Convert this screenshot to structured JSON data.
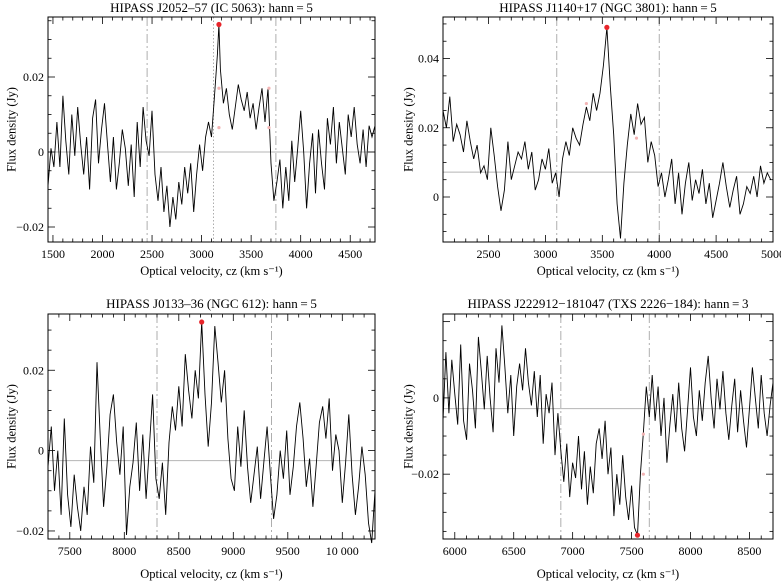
{
  "chart_data": [
    {
      "type": "line",
      "title": "HIPASS J2052–57 (IC 5063): hann = 5",
      "xlabel": "Optical velocity, cz (km s⁻¹)",
      "ylabel": "Flux density (Jy)",
      "xlim": [
        1450,
        4750
      ],
      "ylim": [
        -0.024,
        0.036
      ],
      "xticks": [
        "1500",
        "2000",
        "2500",
        "3000",
        "3500",
        "4000",
        "4500"
      ],
      "yticks": [
        "−0.02",
        "0",
        "0.02"
      ],
      "baseline": 0.0,
      "vlines_dashed": [
        2450,
        3750
      ],
      "vline_dotted": 3120,
      "peak": {
        "x": 3175,
        "y": 0.034
      },
      "markers": [
        {
          "x": 3175,
          "y": 0.017
        },
        {
          "x": 3175,
          "y": 0.0065
        },
        {
          "x": 3680,
          "y": 0.017
        },
        {
          "x": 3680,
          "y": 0.0065
        }
      ],
      "series": [
        {
          "x": [
            1450,
            1480,
            1510,
            1540,
            1570,
            1600,
            1630,
            1660,
            1690,
            1720,
            1750,
            1780,
            1810,
            1840,
            1870,
            1900,
            1930,
            1960,
            1990,
            2020,
            2050,
            2080,
            2110,
            2140,
            2170,
            2200,
            2230,
            2260,
            2290,
            2320,
            2350,
            2380,
            2410,
            2440,
            2470,
            2500,
            2530,
            2560,
            2590,
            2620,
            2650,
            2680,
            2710,
            2740,
            2770,
            2800,
            2830,
            2860,
            2890,
            2920,
            2950,
            2980,
            3010,
            3040,
            3070,
            3100,
            3130,
            3160,
            3175,
            3190,
            3220,
            3250,
            3280,
            3310,
            3340,
            3370,
            3400,
            3430,
            3460,
            3490,
            3520,
            3550,
            3580,
            3610,
            3640,
            3670,
            3700,
            3730,
            3760,
            3790,
            3820,
            3850,
            3880,
            3910,
            3940,
            3970,
            4000,
            4030,
            4060,
            4090,
            4120,
            4150,
            4180,
            4210,
            4240,
            4270,
            4300,
            4330,
            4360,
            4390,
            4420,
            4450,
            4480,
            4510,
            4540,
            4570,
            4600,
            4630,
            4660,
            4690,
            4720,
            4750
          ],
          "values": [
            -0.009,
            0.001,
            -0.004,
            0.008,
            -0.004,
            0.015,
            0.003,
            -0.006,
            0.01,
            -0.001,
            0.012,
            0.002,
            -0.006,
            0.004,
            -0.01,
            0.009,
            0.014,
            -0.003,
            0.006,
            0.013,
            0.002,
            -0.008,
            0.004,
            -0.01,
            -0.003,
            0.006,
            0.001,
            -0.009,
            0.002,
            -0.012,
            0.008,
            -0.004,
            0.012,
            0.003,
            -0.001,
            0.011,
            -0.006,
            -0.013,
            -0.004,
            -0.016,
            -0.009,
            -0.02,
            -0.012,
            -0.018,
            -0.008,
            -0.014,
            -0.004,
            -0.011,
            -0.003,
            -0.016,
            -0.006,
            0.002,
            -0.005,
            0.004,
            0.008,
            0.004,
            0.015,
            0.026,
            0.034,
            0.022,
            0.013,
            0.017,
            0.01,
            0.006,
            0.012,
            0.018,
            0.014,
            0.011,
            0.016,
            0.009,
            0.013,
            0.006,
            0.012,
            0.017,
            0.008,
            0.017,
            -0.003,
            -0.013,
            -0.008,
            -0.002,
            -0.015,
            -0.004,
            -0.013,
            0.003,
            -0.008,
            0.001,
            0.011,
            0.0,
            -0.015,
            -0.003,
            0.005,
            -0.011,
            0.006,
            -0.003,
            -0.01,
            0.009,
            0.002,
            0.012,
            -0.003,
            0.008,
            0.001,
            -0.006,
            0.01,
            0.004,
            0.012,
            0.002,
            -0.003,
            0.006,
            -0.004,
            0.007,
            0.004,
            0.007
          ]
        }
      ]
    },
    {
      "type": "line",
      "title": "HIPASS J1140+17 (NGC 3801): hann = 5",
      "xlabel": "Optical velocity, cz (km s⁻¹)",
      "ylabel": "Flux density (Jy)",
      "xlim": [
        2100,
        5000
      ],
      "ylim": [
        -0.013,
        0.052
      ],
      "xticks": [
        "2500",
        "3000",
        "3500",
        "4000",
        "4500",
        "5000"
      ],
      "yticks": [
        "0",
        "0.02",
        "0.04"
      ],
      "baseline": 0.0072,
      "vlines_dashed": [
        3100,
        4000
      ],
      "peak": {
        "x": 3540,
        "y": 0.049
      },
      "markers": [
        {
          "x": 3360,
          "y": 0.027
        },
        {
          "x": 3800,
          "y": 0.017
        }
      ],
      "series": [
        {
          "x": [
            2100,
            2130,
            2160,
            2190,
            2220,
            2250,
            2280,
            2310,
            2340,
            2370,
            2400,
            2430,
            2460,
            2490,
            2520,
            2550,
            2580,
            2610,
            2640,
            2670,
            2700,
            2730,
            2760,
            2790,
            2820,
            2850,
            2880,
            2910,
            2940,
            2970,
            3000,
            3030,
            3060,
            3090,
            3120,
            3150,
            3180,
            3210,
            3240,
            3270,
            3300,
            3330,
            3360,
            3390,
            3420,
            3450,
            3480,
            3510,
            3540,
            3570,
            3600,
            3630,
            3660,
            3690,
            3720,
            3750,
            3780,
            3810,
            3840,
            3870,
            3900,
            3930,
            3960,
            3990,
            4020,
            4050,
            4080,
            4110,
            4140,
            4170,
            4200,
            4230,
            4260,
            4290,
            4320,
            4350,
            4380,
            4410,
            4440,
            4470,
            4500,
            4530,
            4560,
            4590,
            4620,
            4650,
            4680,
            4710,
            4740,
            4770,
            4800,
            4830,
            4860,
            4890,
            4920,
            4950,
            4980
          ],
          "values": [
            0.025,
            0.02,
            0.029,
            0.016,
            0.021,
            0.018,
            0.013,
            0.022,
            0.016,
            0.011,
            0.015,
            0.007,
            0.009,
            0.005,
            0.02,
            0.012,
            0.003,
            -0.004,
            0.002,
            0.016,
            0.005,
            0.009,
            0.013,
            0.011,
            0.016,
            0.008,
            0.013,
            0.002,
            0.005,
            0.011,
            0.008,
            0.014,
            0.004,
            0.007,
            0.0,
            0.011,
            0.016,
            0.012,
            0.02,
            0.017,
            0.015,
            0.021,
            0.026,
            0.022,
            0.03,
            0.025,
            0.03,
            0.038,
            0.049,
            0.032,
            0.018,
            -0.002,
            -0.012,
            0.004,
            0.015,
            0.024,
            0.018,
            0.027,
            0.021,
            0.023,
            0.01,
            0.016,
            0.012,
            0.003,
            0.007,
            0.0,
            0.005,
            0.011,
            -0.002,
            0.007,
            -0.005,
            0.004,
            0.01,
            -0.001,
            0.005,
            0.001,
            0.008,
            -0.002,
            0.004,
            -0.006,
            -0.001,
            0.004,
            0.01,
            0.003,
            -0.003,
            0.002,
            0.006,
            -0.005,
            -0.002,
            0.003,
            0.001,
            0.006,
            0.0,
            0.009,
            0.004,
            0.007,
            0.005
          ]
        }
      ]
    },
    {
      "type": "line",
      "title": "HIPASS J0133–36 (NGC 612): hann = 5",
      "xlabel": "Optical velocity, cz (km s⁻¹)",
      "ylabel": "Flux density (Jy)",
      "xlim": [
        7300,
        10300
      ],
      "ylim": [
        -0.022,
        0.034
      ],
      "xticks": [
        "7500",
        "8000",
        "8500",
        "9000",
        "9500",
        "10 000"
      ],
      "yticks": [
        "−0.02",
        "0",
        "0.02"
      ],
      "baseline": -0.0025,
      "vlines_dashed": [
        8300,
        9350
      ],
      "peak": {
        "x": 8710,
        "y": 0.032
      },
      "markers": [],
      "series": [
        {
          "x": [
            7300,
            7330,
            7360,
            7390,
            7420,
            7450,
            7480,
            7510,
            7540,
            7570,
            7600,
            7630,
            7660,
            7690,
            7720,
            7750,
            7780,
            7810,
            7840,
            7870,
            7900,
            7930,
            7960,
            7990,
            8020,
            8050,
            8080,
            8110,
            8140,
            8170,
            8200,
            8230,
            8260,
            8290,
            8320,
            8350,
            8380,
            8410,
            8440,
            8470,
            8500,
            8530,
            8560,
            8590,
            8620,
            8650,
            8680,
            8710,
            8740,
            8770,
            8800,
            8830,
            8860,
            8890,
            8920,
            8950,
            8980,
            9010,
            9040,
            9070,
            9100,
            9130,
            9160,
            9190,
            9220,
            9250,
            9280,
            9310,
            9340,
            9370,
            9400,
            9430,
            9460,
            9490,
            9520,
            9550,
            9580,
            9610,
            9640,
            9670,
            9700,
            9730,
            9760,
            9790,
            9820,
            9850,
            9880,
            9910,
            9940,
            9970,
            10000,
            10030,
            10060,
            10090,
            10120,
            10150,
            10180,
            10210,
            10240,
            10270,
            10300
          ],
          "values": [
            -0.004,
            0.006,
            -0.01,
            0.0,
            -0.016,
            0.008,
            -0.011,
            -0.019,
            -0.006,
            -0.014,
            -0.02,
            -0.009,
            -0.016,
            0.001,
            -0.008,
            0.022,
            0.003,
            -0.014,
            -0.004,
            0.009,
            0.014,
            0.002,
            -0.006,
            0.006,
            -0.021,
            -0.009,
            -0.003,
            0.007,
            -0.01,
            0.004,
            -0.012,
            0.001,
            0.014,
            -0.007,
            -0.012,
            -0.003,
            -0.016,
            0.002,
            0.011,
            0.005,
            0.016,
            0.006,
            0.024,
            0.015,
            0.008,
            0.02,
            0.013,
            0.032,
            0.014,
            0.001,
            0.012,
            0.031,
            0.022,
            0.012,
            0.02,
            0.003,
            -0.007,
            -0.01,
            0.006,
            -0.004,
            0.01,
            -0.004,
            -0.013,
            -0.006,
            0.001,
            -0.012,
            -0.003,
            0.006,
            -0.006,
            -0.017,
            -0.011,
            0.0,
            -0.007,
            0.005,
            -0.011,
            -0.004,
            0.006,
            0.012,
            0.003,
            -0.009,
            -0.002,
            -0.014,
            -0.004,
            0.007,
            0.011,
            0.003,
            0.013,
            -0.005,
            0.004,
            0.0,
            -0.013,
            -0.003,
            0.009,
            -0.006,
            -0.016,
            -0.009,
            0.001,
            -0.006,
            -0.018,
            -0.023,
            -0.01
          ]
        }
      ]
    },
    {
      "type": "line",
      "title": "HIPASS J222912−181047 (TXS 2226−184): hann = 3",
      "xlabel": "Optical velocity, cz (km s⁻¹)",
      "ylabel": "Flux density (Jy)",
      "xlim": [
        5900,
        8700
      ],
      "ylim": [
        -0.037,
        0.022
      ],
      "xticks": [
        "6000",
        "6500",
        "7000",
        "7500",
        "8000",
        "8500"
      ],
      "yticks": [
        "−0.02",
        "0"
      ],
      "baseline": -0.0028,
      "vlines_dashed": [
        6900,
        7650
      ],
      "peak": {
        "x": 7550,
        "y": -0.036
      },
      "markers": [
        {
          "x": 7600,
          "y": -0.0095
        },
        {
          "x": 7600,
          "y": -0.02
        }
      ],
      "series": [
        {
          "x": [
            5900,
            5925,
            5950,
            5975,
            6000,
            6025,
            6050,
            6075,
            6100,
            6125,
            6150,
            6175,
            6200,
            6225,
            6250,
            6275,
            6300,
            6325,
            6350,
            6375,
            6400,
            6425,
            6450,
            6475,
            6500,
            6525,
            6550,
            6575,
            6600,
            6625,
            6650,
            6675,
            6700,
            6725,
            6750,
            6775,
            6800,
            6825,
            6850,
            6875,
            6900,
            6925,
            6950,
            6975,
            7000,
            7025,
            7050,
            7075,
            7100,
            7125,
            7150,
            7175,
            7200,
            7225,
            7250,
            7275,
            7300,
            7325,
            7350,
            7375,
            7400,
            7425,
            7450,
            7475,
            7500,
            7525,
            7550,
            7575,
            7600,
            7625,
            7650,
            7675,
            7700,
            7725,
            7750,
            7775,
            7800,
            7825,
            7850,
            7875,
            7900,
            7925,
            7950,
            7975,
            8000,
            8025,
            8050,
            8075,
            8100,
            8125,
            8150,
            8175,
            8200,
            8225,
            8250,
            8275,
            8300,
            8325,
            8350,
            8375,
            8400,
            8425,
            8450,
            8475,
            8500,
            8525,
            8550,
            8575,
            8600,
            8625,
            8650,
            8675,
            8700
          ],
          "values": [
            -0.006,
            0.012,
            -0.004,
            0.01,
            0.001,
            -0.007,
            0.014,
            -0.006,
            -0.011,
            0.009,
            0.002,
            -0.008,
            0.016,
            0.007,
            -0.003,
            0.011,
            0.0,
            -0.009,
            0.013,
            0.004,
            0.019,
            0.008,
            -0.004,
            0.006,
            -0.01,
            0.003,
            0.009,
            0.002,
            0.013,
            0.004,
            -0.002,
            0.007,
            -0.005,
            0.006,
            -0.012,
            0.001,
            -0.004,
            0.004,
            -0.015,
            -0.004,
            -0.014,
            -0.022,
            -0.012,
            -0.026,
            -0.017,
            -0.021,
            -0.01,
            -0.024,
            -0.014,
            -0.028,
            -0.018,
            -0.025,
            -0.012,
            -0.008,
            -0.016,
            -0.006,
            -0.02,
            -0.013,
            -0.031,
            -0.02,
            -0.028,
            -0.015,
            -0.026,
            -0.032,
            -0.023,
            -0.034,
            -0.036,
            -0.02,
            -0.009,
            0.003,
            -0.005,
            0.006,
            -0.006,
            0.003,
            -0.01,
            0.0,
            -0.017,
            -0.007,
            0.001,
            -0.009,
            0.004,
            -0.008,
            -0.014,
            -0.003,
            0.008,
            -0.005,
            -0.01,
            0.002,
            -0.006,
            0.004,
            0.011,
            0.0,
            -0.008,
            0.005,
            -0.003,
            0.007,
            -0.004,
            -0.011,
            -0.002,
            0.005,
            -0.009,
            0.002,
            -0.006,
            -0.013,
            -0.003,
            0.008,
            0.0,
            -0.008,
            0.006,
            -0.004,
            -0.01,
            -0.002,
            0.004
          ]
        }
      ]
    }
  ]
}
